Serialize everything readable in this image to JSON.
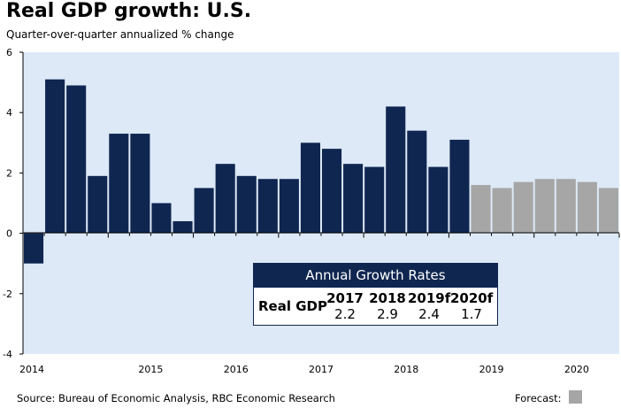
{
  "title": "Real GDP growth: U.S.",
  "subtitle": "Quarter-over-quarter annualized % change",
  "source": "Source: Bureau of Economic Analysis, RBC Economic Research",
  "forecast_label": "Forecast:",
  "colors": {
    "actual": "#0f2650",
    "forecast": "#a6a6a6",
    "plot_bg": "#dde9f7"
  },
  "annual_table": {
    "title": "Annual Growth Rates",
    "row_label": "Real GDP",
    "years": [
      "2017",
      "2018",
      "2019f",
      "2020f"
    ],
    "values": [
      "2.2",
      "2.9",
      "2.4",
      "1.7"
    ]
  },
  "chart_data": {
    "type": "bar",
    "title": "Real GDP growth: U.S.",
    "subtitle": "Quarter-over-quarter annualized % change",
    "ylim": [
      -4,
      6
    ],
    "yticks": [
      "-4",
      "-2",
      "0",
      "2",
      "4",
      "6"
    ],
    "x_year_labels": [
      "2014",
      "2015",
      "2016",
      "2017",
      "2018",
      "2019",
      "2020"
    ],
    "categories": [
      "2014Q1",
      "2014Q2",
      "2014Q3",
      "2014Q4",
      "2015Q1",
      "2015Q2",
      "2015Q3",
      "2015Q4",
      "2016Q1",
      "2016Q2",
      "2016Q3",
      "2016Q4",
      "2017Q1",
      "2017Q2",
      "2017Q3",
      "2017Q4",
      "2018Q1",
      "2018Q2",
      "2018Q3",
      "2018Q4",
      "2019Q1",
      "2019Q2",
      "2019Q3",
      "2019Q4",
      "2020Q1",
      "2020Q2",
      "2020Q3",
      "2020Q4"
    ],
    "series": [
      {
        "values": [
          -1.0,
          5.1,
          4.9,
          1.9,
          3.3,
          3.3,
          1.0,
          0.4,
          1.5,
          2.3,
          1.9,
          1.8,
          1.8,
          3.0,
          2.8,
          2.3,
          2.2,
          4.2,
          3.4,
          2.2,
          3.1,
          1.6,
          1.5,
          1.7,
          1.8,
          1.8,
          1.7,
          1.5
        ]
      }
    ],
    "forecast_start_index": 21,
    "grid": false
  }
}
